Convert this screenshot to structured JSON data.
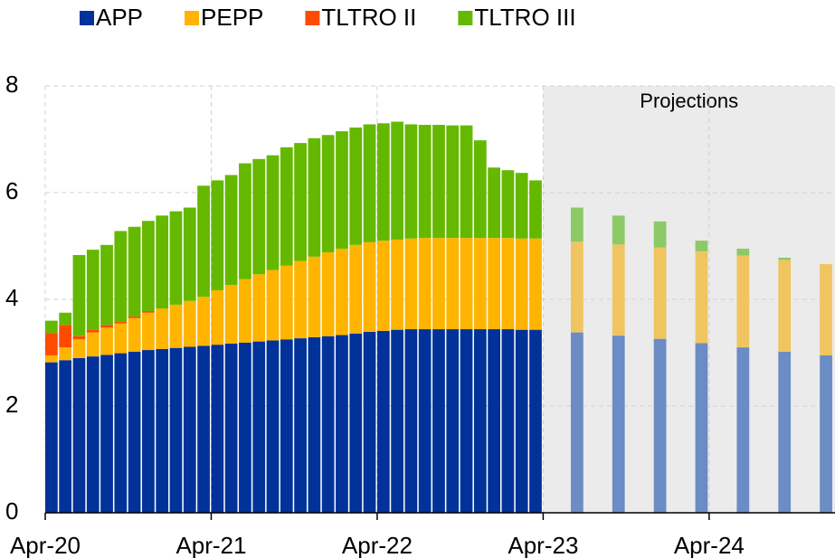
{
  "chart_data": {
    "type": "bar",
    "stacked": true,
    "x": [
      0,
      1,
      2,
      3,
      4,
      5,
      6,
      7,
      8,
      9,
      10,
      11,
      12,
      13,
      14,
      15,
      16,
      17,
      18,
      19,
      20,
      21,
      22,
      23,
      24,
      25,
      26,
      27,
      28,
      29,
      30,
      31,
      32,
      33,
      34,
      35,
      38,
      41,
      44,
      47,
      50,
      53,
      56
    ],
    "xlim": [
      0,
      57.1
    ],
    "ylim": [
      0,
      8
    ],
    "xticks": [
      {
        "value": 0,
        "label": "Apr-20"
      },
      {
        "value": 12,
        "label": "Apr-21"
      },
      {
        "value": 24,
        "label": "Apr-22"
      },
      {
        "value": 36,
        "label": "Apr-23"
      },
      {
        "value": 48,
        "label": "Apr-24"
      }
    ],
    "yticks": [
      0,
      2,
      4,
      6,
      8
    ],
    "grid": true,
    "projection": {
      "from": 36,
      "label": "Projections"
    },
    "series": [
      {
        "name": "APP",
        "color": "#003299",
        "projection_color": "#6b8cc4",
        "values": [
          2.82,
          2.86,
          2.9,
          2.93,
          2.96,
          2.99,
          3.02,
          3.05,
          3.07,
          3.09,
          3.11,
          3.13,
          3.15,
          3.17,
          3.19,
          3.21,
          3.23,
          3.25,
          3.27,
          3.29,
          3.31,
          3.33,
          3.36,
          3.39,
          3.41,
          3.43,
          3.44,
          3.44,
          3.44,
          3.44,
          3.44,
          3.44,
          3.44,
          3.44,
          3.43,
          3.43,
          3.38,
          3.32,
          3.26,
          3.18,
          3.1,
          3.02,
          2.95
        ]
      },
      {
        "name": "PEPP",
        "color": "#ffb400",
        "projection_color": "#f0c560",
        "values": [
          0.13,
          0.24,
          0.35,
          0.45,
          0.51,
          0.56,
          0.63,
          0.7,
          0.76,
          0.81,
          0.86,
          0.92,
          1.02,
          1.1,
          1.19,
          1.26,
          1.32,
          1.38,
          1.45,
          1.51,
          1.57,
          1.62,
          1.66,
          1.68,
          1.69,
          1.69,
          1.7,
          1.71,
          1.71,
          1.71,
          1.71,
          1.71,
          1.71,
          1.71,
          1.71,
          1.71,
          1.7,
          1.71,
          1.71,
          1.72,
          1.72,
          1.72,
          1.71
        ]
      },
      {
        "name": "TLTRO II",
        "color": "#ff4b00",
        "projection_color": "#ff9b70",
        "values": [
          0.42,
          0.42,
          0.06,
          0.05,
          0.05,
          0.04,
          0.03,
          0.03,
          0,
          0,
          0,
          0,
          0,
          0,
          0,
          0,
          0,
          0,
          0,
          0,
          0,
          0,
          0,
          0,
          0,
          0,
          0,
          0,
          0,
          0,
          0,
          0,
          0,
          0,
          0,
          0,
          0,
          0,
          0,
          0,
          0,
          0,
          0
        ]
      },
      {
        "name": "TLTRO III",
        "color": "#65b800",
        "projection_color": "#8dc965",
        "values": [
          0.23,
          0.23,
          1.52,
          1.5,
          1.5,
          1.69,
          1.68,
          1.69,
          1.74,
          1.75,
          1.75,
          2.08,
          2.06,
          2.06,
          2.17,
          2.16,
          2.15,
          2.22,
          2.21,
          2.22,
          2.2,
          2.2,
          2.2,
          2.21,
          2.2,
          2.21,
          2.14,
          2.12,
          2.12,
          2.11,
          2.11,
          1.83,
          1.32,
          1.27,
          1.23,
          1.09,
          0.64,
          0.54,
          0.49,
          0.2,
          0.13,
          0.04,
          0
        ]
      }
    ]
  }
}
